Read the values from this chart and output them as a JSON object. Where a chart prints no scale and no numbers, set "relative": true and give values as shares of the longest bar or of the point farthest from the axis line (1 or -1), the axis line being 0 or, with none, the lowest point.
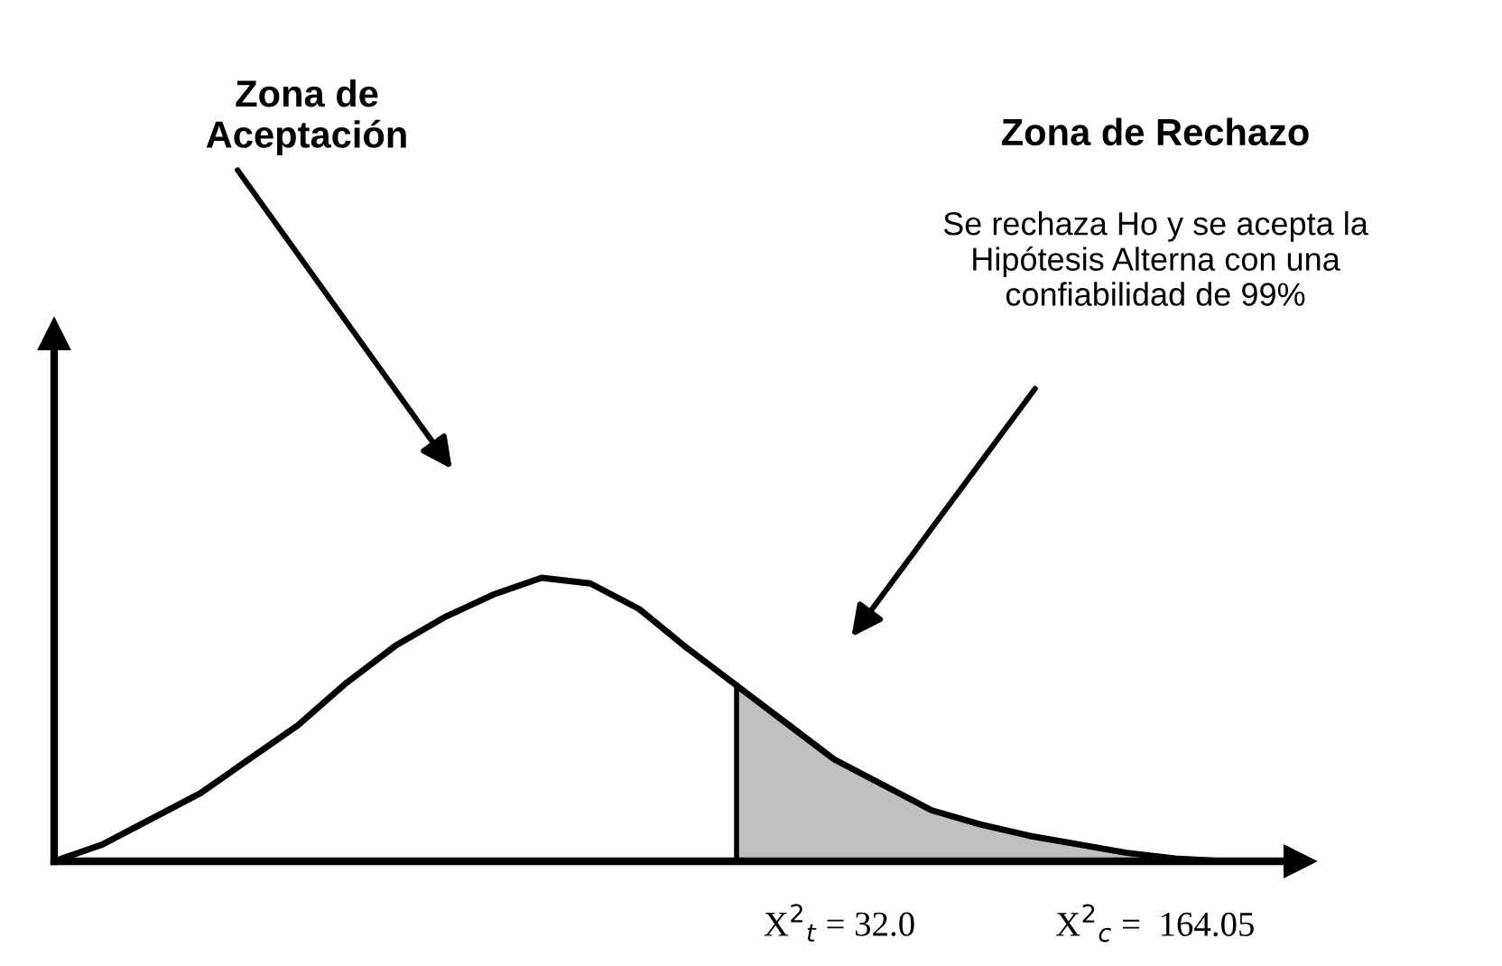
{
  "chart_data": {
    "type": "line",
    "relative": true,
    "categories": [
      null,
      null,
      null,
      null,
      null,
      null,
      null,
      null,
      null,
      null,
      null,
      null,
      null,
      null,
      null,
      null,
      null,
      null,
      null,
      null,
      null,
      null,
      null,
      null,
      null,
      null
    ],
    "series": [
      {
        "color": "#000000",
        "values": [
          0,
          0.06,
          0.15,
          0.24,
          0.36,
          0.48,
          0.63,
          0.76,
          0.86,
          0.94,
          1,
          0.98,
          0.89,
          0.75,
          0.62,
          0.49,
          0.36,
          0.27,
          0.18,
          0.13,
          0.09,
          0.06,
          0.03,
          0.01,
          0,
          0
        ]
      },
      {
        "type": "area",
        "color": "#c0c0c0",
        "values": [
          null,
          null,
          null,
          null,
          null,
          null,
          null,
          null,
          null,
          null,
          null,
          null,
          null,
          null,
          0.62,
          0.49,
          0.36,
          0.27,
          0.18,
          0.13,
          0.09,
          0.06,
          0.03,
          0.01,
          0,
          0
        ]
      }
    ],
    "annotations": [
      "Zona de\nAceptación",
      "Zona de Rechazo",
      "Se rechaza Ho y se acepta la\nHipótesis Alterna con una\nconfiabilidad de 99%",
      "X$^{2}$$_{t}$ = 32.0",
      "X$^{2}$$_{c}$ =  164.05"
    ],
    "marker": "none",
    "line_style": "solid"
  }
}
